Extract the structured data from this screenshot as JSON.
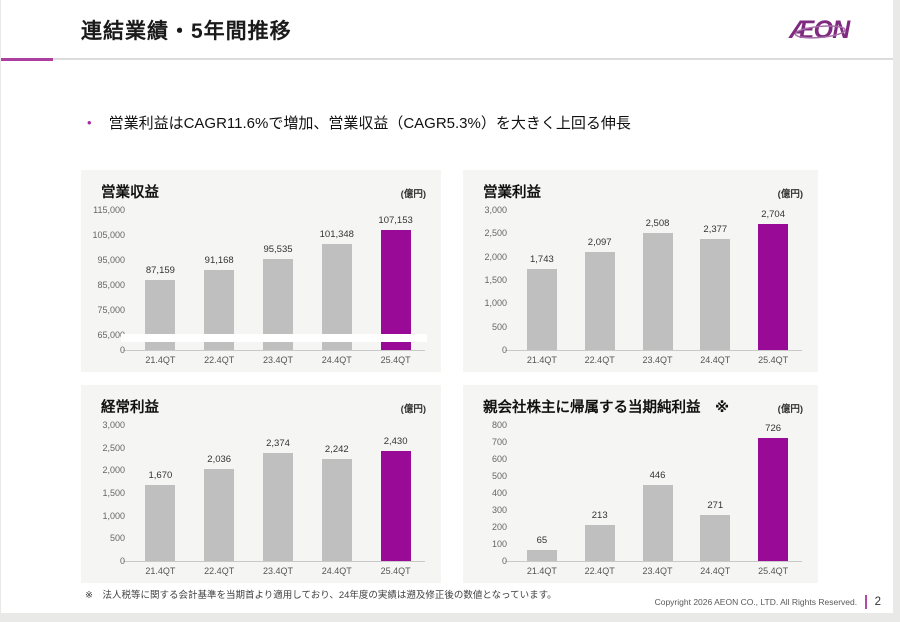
{
  "page": {
    "title": "連結業績・5年間推移",
    "logo_text": "ÆON",
    "bullet": "営業利益はCAGR11.6%で増加、営業収益（CAGR5.3%）を大きく上回る伸長",
    "footnote": "※　法人税等に関する会計基準を当期首より適用しており、24年度の実績は遡及修正後の数値となっています。",
    "copyright": "Copyright 2026 AEON CO., LTD. All Rights Reserved.",
    "page_number": "2"
  },
  "colors": {
    "accent_bar": "#990a96",
    "gray_bar": "#bfbfbf",
    "logo_purple": "#7e2a80",
    "divider_accent": "#ac3fa0"
  },
  "chart_data": [
    {
      "type": "bar",
      "title": "営業収益",
      "unit": "(億円)",
      "categories": [
        "21.4QT",
        "22.4QT",
        "23.4QT",
        "24.4QT",
        "25.4QT"
      ],
      "values": [
        87159,
        91168,
        95535,
        101348,
        107153
      ],
      "value_labels": [
        "87,159",
        "91,168",
        "95,535",
        "101,348",
        "107,153"
      ],
      "yticks": [
        "0",
        "65,000",
        "75,000",
        "85,000",
        "95,000",
        "105,000",
        "115,000"
      ],
      "ymax": 115000,
      "ymin_visible": 65000,
      "axis_break": true,
      "grid": false,
      "legend": false,
      "highlight_index": 4
    },
    {
      "type": "bar",
      "title": "営業利益",
      "unit": "(億円)",
      "categories": [
        "21.4QT",
        "22.4QT",
        "23.4QT",
        "24.4QT",
        "25.4QT"
      ],
      "values": [
        1743,
        2097,
        2508,
        2377,
        2704
      ],
      "value_labels": [
        "1,743",
        "2,097",
        "2,508",
        "2,377",
        "2,704"
      ],
      "yticks": [
        "0",
        "500",
        "1,000",
        "1,500",
        "2,000",
        "2,500",
        "3,000"
      ],
      "ymax": 3000,
      "axis_break": false,
      "grid": false,
      "legend": false,
      "highlight_index": 4
    },
    {
      "type": "bar",
      "title": "経常利益",
      "unit": "(億円)",
      "categories": [
        "21.4QT",
        "22.4QT",
        "23.4QT",
        "24.4QT",
        "25.4QT"
      ],
      "values": [
        1670,
        2036,
        2374,
        2242,
        2430
      ],
      "value_labels": [
        "1,670",
        "2,036",
        "2,374",
        "2,242",
        "2,430"
      ],
      "yticks": [
        "0",
        "500",
        "1,000",
        "1,500",
        "2,000",
        "2,500",
        "3,000"
      ],
      "ymax": 3000,
      "axis_break": false,
      "grid": false,
      "legend": false,
      "highlight_index": 4
    },
    {
      "type": "bar",
      "title": "親会社株主に帰属する当期純利益　※",
      "unit": "(億円)",
      "categories": [
        "21.4QT",
        "22.4QT",
        "23.4QT",
        "24.4QT",
        "25.4QT"
      ],
      "values": [
        65,
        213,
        446,
        271,
        726
      ],
      "value_labels": [
        "65",
        "213",
        "446",
        "271",
        "726"
      ],
      "yticks": [
        "0",
        "100",
        "200",
        "300",
        "400",
        "500",
        "600",
        "700",
        "800"
      ],
      "ymax": 800,
      "axis_break": false,
      "grid": false,
      "legend": false,
      "highlight_index": 4
    }
  ]
}
